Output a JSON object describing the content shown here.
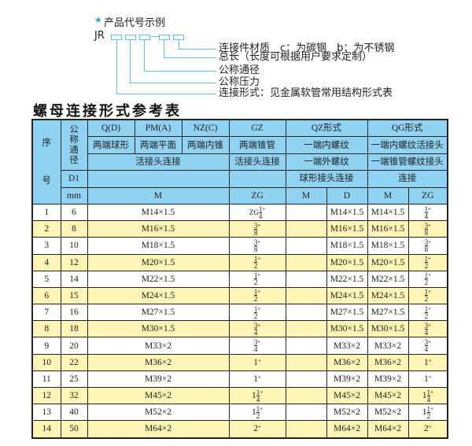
{
  "example": {
    "star_icon": "star-icon",
    "title": "产品代号示例",
    "code_prefix": "JR",
    "legend": [
      "连接件材质　c：为碳钢　b：为不锈钢",
      "总长（长度可根据用户要求定制）",
      "公称通径",
      "公称压力",
      "连接形式：见金属软管常用结构形式表"
    ]
  },
  "table_title": "螺母连接形式参考表",
  "header": {
    "seq_top": "序",
    "seq_bottom": "号",
    "nominal": "公称通径",
    "d1": "D1",
    "mm": "mm",
    "qd": "Q(D)",
    "pma": "PM(A)",
    "nzc": "NZ(C)",
    "gz": "GZ",
    "qz": "QZ形式",
    "qg": "QG形式",
    "qd_desc": "两端球形",
    "pma_desc": "两端平面",
    "nzc_desc": "两端内锥",
    "gz_desc": "两端锥管",
    "qz_desc": "一端内螺纹",
    "qg_desc": "一端内螺纹活接头",
    "union_desc": "活接头连接",
    "gz_union": "活接头连接",
    "qz_desc2": "一端外螺纹",
    "qg_desc2": "一端锥管螺纹接头",
    "qz_desc3": "球形接头连接",
    "qg_desc3": "连接",
    "m": "M",
    "zg": "ZG",
    "qz_m": "M",
    "qz_d": "D",
    "qg_m": "M",
    "qg_zg": "ZG"
  },
  "rows": [
    {
      "no": "1",
      "dn": "6",
      "m": "M14×1.5",
      "zg": {
        "prefix": "ZG",
        "whole": "",
        "num": "1",
        "den": "4"
      },
      "qz_m": "",
      "qz_d": "M14×1.5",
      "qg_m": "M14×1.5",
      "qg_zg": {
        "prefix": "",
        "whole": "",
        "num": "1",
        "den": "4"
      }
    },
    {
      "no": "2",
      "dn": "8",
      "m": "M16×1.5",
      "zg": {
        "prefix": "",
        "whole": "",
        "num": "3",
        "den": "8"
      },
      "qz_m": "",
      "qz_d": "M16×1.5",
      "qg_m": "M16×1.5",
      "qg_zg": {
        "prefix": "",
        "whole": "",
        "num": "3",
        "den": "8"
      }
    },
    {
      "no": "3",
      "dn": "10",
      "m": "M18×1.5",
      "zg": {
        "prefix": "",
        "whole": "",
        "num": "3",
        "den": "8"
      },
      "qz_m": "",
      "qz_d": "M18×1.5",
      "qg_m": "M18×1.5",
      "qg_zg": {
        "prefix": "",
        "whole": "",
        "num": "3",
        "den": "8"
      }
    },
    {
      "no": "4",
      "dn": "12",
      "m": "M20×1.5",
      "zg": {
        "prefix": "",
        "whole": "",
        "num": "1",
        "den": "2"
      },
      "qz_m": "",
      "qz_d": "M20×1.5",
      "qg_m": "M20×1.5",
      "qg_zg": {
        "prefix": "",
        "whole": "",
        "num": "1",
        "den": "2"
      }
    },
    {
      "no": "5",
      "dn": "14",
      "m": "M22×1.5",
      "zg": {
        "prefix": "",
        "whole": "",
        "num": "1",
        "den": "2"
      },
      "qz_m": "",
      "qz_d": "M22×1.5",
      "qg_m": "M22×1.5",
      "qg_zg": {
        "prefix": "",
        "whole": "",
        "num": "1",
        "den": "2"
      }
    },
    {
      "no": "6",
      "dn": "15",
      "m": "M24×1.5",
      "zg": {
        "prefix": "",
        "whole": "",
        "num": "1",
        "den": "2"
      },
      "qz_m": "",
      "qz_d": "M24×1.5",
      "qg_m": "M24×1.5",
      "qg_zg": {
        "prefix": "",
        "whole": "",
        "num": "1",
        "den": "2"
      }
    },
    {
      "no": "7",
      "dn": "16",
      "m": "M27×1.5",
      "zg": {
        "prefix": "",
        "whole": "",
        "num": "1",
        "den": "2"
      },
      "qz_m": "",
      "qz_d": "M27×1.5",
      "qg_m": "M27×1.5",
      "qg_zg": {
        "prefix": "",
        "whole": "",
        "num": "1",
        "den": "2"
      }
    },
    {
      "no": "8",
      "dn": "18",
      "m": "M30×1.5",
      "zg": {
        "prefix": "",
        "whole": "",
        "num": "3",
        "den": "4"
      },
      "qz_m": "",
      "qz_d": "M30×1.5",
      "qg_m": "M30×1.5",
      "qg_zg": {
        "prefix": "",
        "whole": "",
        "num": "3",
        "den": "4"
      }
    },
    {
      "no": "9",
      "dn": "20",
      "m": "M33×2",
      "zg": {
        "prefix": "",
        "whole": "",
        "num": "3",
        "den": "4"
      },
      "qz_m": "",
      "qz_d": "M33×2",
      "qg_m": "M33×2",
      "qg_zg": {
        "prefix": "",
        "whole": "",
        "num": "3",
        "den": "4"
      }
    },
    {
      "no": "10",
      "dn": "22",
      "m": "M36×2",
      "zg": {
        "prefix": "",
        "whole": "1",
        "num": "",
        "den": ""
      },
      "qz_m": "",
      "qz_d": "M36×2",
      "qg_m": "M36×2",
      "qg_zg": {
        "prefix": "",
        "whole": "1",
        "num": "",
        "den": ""
      }
    },
    {
      "no": "11",
      "dn": "25",
      "m": "M39×2",
      "zg": {
        "prefix": "",
        "whole": "1",
        "num": "",
        "den": ""
      },
      "qz_m": "",
      "qz_d": "M39×2",
      "qg_m": "M39×2",
      "qg_zg": {
        "prefix": "",
        "whole": "1",
        "num": "",
        "den": ""
      }
    },
    {
      "no": "12",
      "dn": "32",
      "m": "M45×2",
      "zg": {
        "prefix": "",
        "whole": "1",
        "num": "1",
        "den": "4"
      },
      "qz_m": "",
      "qz_d": "M45×2",
      "qg_m": "M45×2",
      "qg_zg": {
        "prefix": "",
        "whole": "1",
        "num": "1",
        "den": "4"
      }
    },
    {
      "no": "13",
      "dn": "40",
      "m": "M52×2",
      "zg": {
        "prefix": "",
        "whole": "1",
        "num": "1",
        "den": "2"
      },
      "qz_m": "",
      "qz_d": "M52×2",
      "qg_m": "M52×2",
      "qg_zg": {
        "prefix": "",
        "whole": "1",
        "num": "1",
        "den": "2"
      }
    },
    {
      "no": "14",
      "dn": "50",
      "m": "M64×2",
      "zg": {
        "prefix": "",
        "whole": "2",
        "num": "",
        "den": ""
      },
      "qz_m": "",
      "qz_d": "M64×2",
      "qg_m": "M64×2",
      "qg_zg": {
        "prefix": "",
        "whole": "2",
        "num": "",
        "den": ""
      }
    }
  ],
  "inch_mark": "\"",
  "colors": {
    "header_bg": "#8fd2f1",
    "row_alt_bg": "#fdf5b5",
    "diagram_line": "#5cc3e3",
    "star": "#2aa7d8"
  }
}
